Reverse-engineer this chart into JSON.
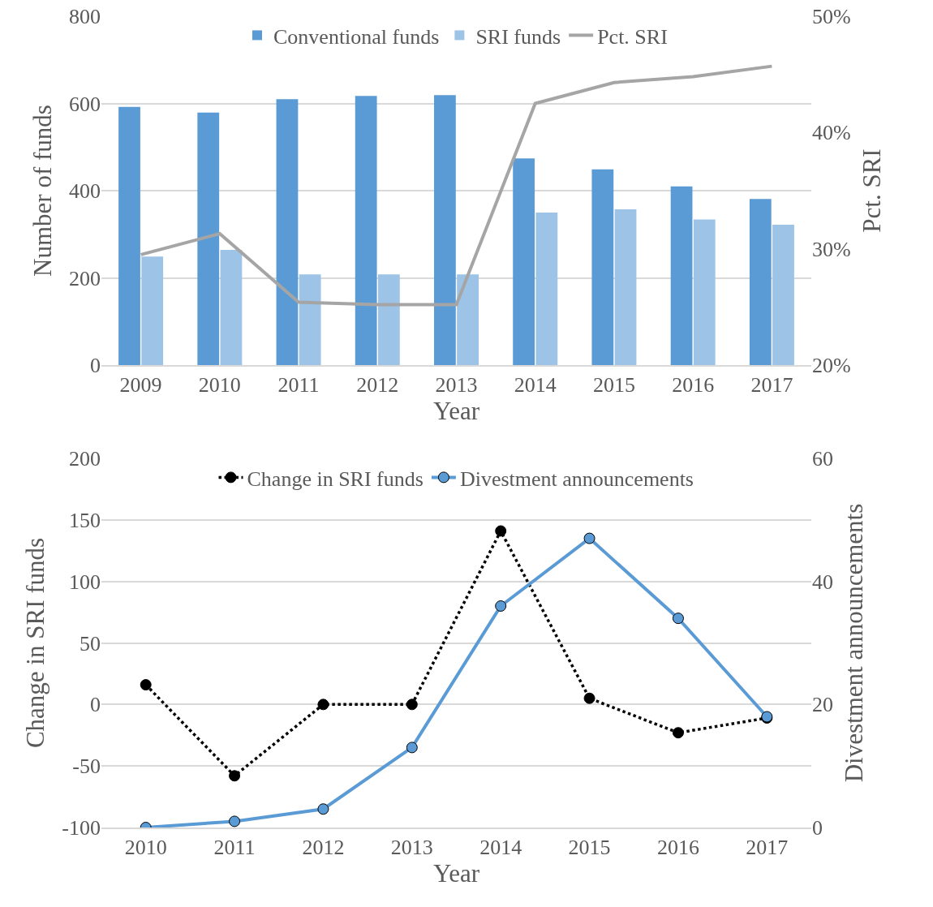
{
  "chart_data": [
    {
      "type": "bar",
      "categories": [
        "2009",
        "2010",
        "2011",
        "2012",
        "2013",
        "2014",
        "2015",
        "2016",
        "2017"
      ],
      "xlabel": "Year",
      "ylabel": "Number of funds",
      "y2label": "Pct. SRI",
      "series": [
        {
          "name": "Conventional funds",
          "color": "#5b9bd5",
          "values": [
            592,
            579,
            610,
            617,
            619,
            474,
            449,
            410,
            381
          ]
        },
        {
          "name": "SRI funds",
          "color": "#9dc3e6",
          "values": [
            249,
            264,
            208,
            208,
            208,
            350,
            357,
            334,
            322
          ]
        },
        {
          "name": "Pct. SRI",
          "type": "line",
          "axis": "y2",
          "color": "#a5a5a5",
          "marker": "none",
          "line_style": "solid",
          "values": [
            29.5,
            31.3,
            25.4,
            25.2,
            25.2,
            42.5,
            44.3,
            44.8,
            45.7
          ]
        }
      ],
      "ylim": [
        0,
        800
      ],
      "yticks": [
        0,
        200,
        400,
        600,
        800
      ],
      "y2lim": [
        20,
        50
      ],
      "y2ticks": [
        {
          "value": 20,
          "label": "20%"
        },
        {
          "value": 30,
          "label": "30%"
        },
        {
          "value": 40,
          "label": "40%"
        },
        {
          "value": 50,
          "label": "50%"
        }
      ],
      "grid": "y",
      "legend": "top"
    },
    {
      "type": "line",
      "categories": [
        "2010",
        "2011",
        "2012",
        "2013",
        "2014",
        "2015",
        "2016",
        "2017"
      ],
      "xlabel": "Year",
      "ylabel": "Change in SRI funds",
      "y2label": "Divestment announcements",
      "series": [
        {
          "name": "Change in SRI funds",
          "color": "#000000",
          "marker": "circle",
          "line_style": "dotted",
          "values": [
            16,
            -58,
            0,
            0,
            141,
            5,
            -23,
            -11
          ]
        },
        {
          "name": "Divestment announcements",
          "axis": "y2",
          "color": "#5b9bd5",
          "marker": "circle",
          "line_style": "solid",
          "values": [
            0,
            1,
            3,
            13,
            36,
            47,
            34,
            18
          ]
        }
      ],
      "ylim": [
        -100,
        200
      ],
      "yticks": [
        -100,
        -50,
        0,
        50,
        100,
        150,
        200
      ],
      "y2lim": [
        0,
        60
      ],
      "y2ticks": [
        0,
        20,
        40,
        60
      ],
      "grid": "y",
      "legend": "top"
    }
  ]
}
